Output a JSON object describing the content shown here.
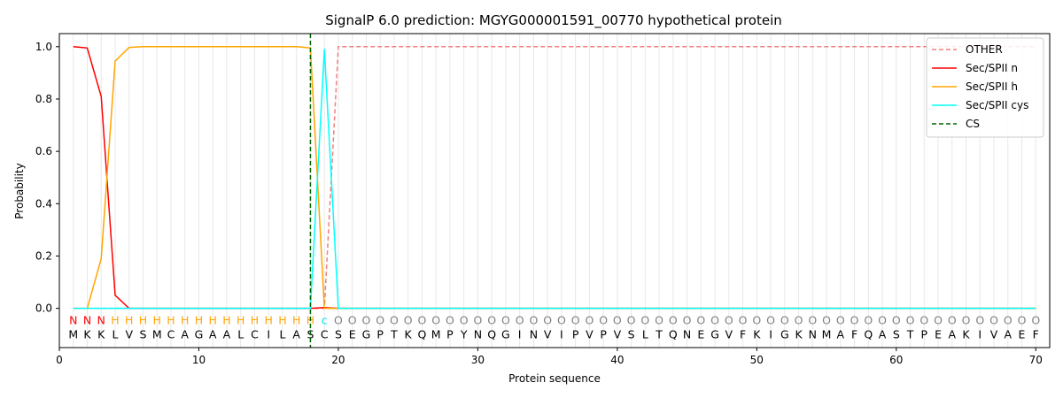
{
  "chart_data": {
    "type": "line",
    "title": "SignalP 6.0 prediction: MGYG000001591_00770 hypothetical protein",
    "xlabel": "Protein sequence",
    "ylabel": "Probability",
    "xlim": [
      0,
      71
    ],
    "ylim": [
      -0.15,
      1.05
    ],
    "xticks": [
      0,
      10,
      20,
      30,
      40,
      50,
      60,
      70
    ],
    "yticks": [
      0.0,
      0.2,
      0.4,
      0.6,
      0.8,
      1.0
    ],
    "xtick_labels": [
      "0",
      "10",
      "20",
      "30",
      "40",
      "50",
      "60",
      "70"
    ],
    "ytick_labels": [
      "0.0",
      "0.2",
      "0.4",
      "0.6",
      "0.8",
      "1.0"
    ],
    "grid": "vertical lines at each residue",
    "legend_position": "top-right",
    "sequence": [
      "M",
      "K",
      "K",
      "L",
      "V",
      "S",
      "M",
      "C",
      "A",
      "G",
      "A",
      "A",
      "L",
      "C",
      "I",
      "L",
      "A",
      "S",
      "C",
      "S",
      "E",
      "G",
      "P",
      "T",
      "K",
      "Q",
      "M",
      "P",
      "Y",
      "N",
      "Q",
      "G",
      "I",
      "N",
      "V",
      "I",
      "P",
      "V",
      "P",
      "V",
      "S",
      "L",
      "T",
      "Q",
      "N",
      "E",
      "G",
      "V",
      "F",
      "K",
      "I",
      "G",
      "K",
      "N",
      "M",
      "A",
      "F",
      "Q",
      "A",
      "S",
      "T",
      "P",
      "E",
      "A",
      "K",
      "I",
      "V",
      "A",
      "E",
      "F"
    ],
    "labels": [
      "N",
      "N",
      "N",
      "H",
      "H",
      "H",
      "H",
      "H",
      "H",
      "H",
      "H",
      "H",
      "H",
      "H",
      "H",
      "H",
      "H",
      "H",
      "c",
      "O",
      "O",
      "O",
      "O",
      "O",
      "O",
      "O",
      "O",
      "O",
      "O",
      "O",
      "O",
      "O",
      "O",
      "O",
      "O",
      "O",
      "O",
      "O",
      "O",
      "O",
      "O",
      "O",
      "O",
      "O",
      "O",
      "O",
      "O",
      "O",
      "O",
      "O",
      "O",
      "O",
      "O",
      "O",
      "O",
      "O",
      "O",
      "O",
      "O",
      "O",
      "O",
      "O",
      "O",
      "O",
      "O",
      "O",
      "O",
      "O",
      "O",
      "O"
    ],
    "label_colors": {
      "N": "#ff0000",
      "H": "#ffa500",
      "c": "#00e5ee",
      "O": "#808080"
    },
    "series": [
      {
        "name": "OTHER",
        "color": "#f08080",
        "style": "dashed",
        "values": [
          0,
          0,
          0,
          0,
          0,
          0,
          0,
          0,
          0,
          0,
          0,
          0,
          0,
          0,
          0,
          0,
          0,
          0,
          0,
          1,
          1,
          1,
          1,
          1,
          1,
          1,
          1,
          1,
          1,
          1,
          1,
          1,
          1,
          1,
          1,
          1,
          1,
          1,
          1,
          1,
          1,
          1,
          1,
          1,
          1,
          1,
          1,
          1,
          1,
          1,
          1,
          1,
          1,
          1,
          1,
          1,
          1,
          1,
          1,
          1,
          1,
          1,
          1,
          1,
          1,
          1,
          1,
          1,
          1,
          1
        ]
      },
      {
        "name": "Sec/SPII n",
        "color": "#ff0000",
        "style": "solid",
        "values": [
          1.0,
          0.995,
          0.81,
          0.05,
          0.0,
          0,
          0,
          0,
          0,
          0,
          0,
          0,
          0,
          0,
          0,
          0,
          0,
          0.0,
          0.003,
          0,
          0,
          0,
          0,
          0,
          0,
          0,
          0,
          0,
          0,
          0,
          0,
          0,
          0,
          0,
          0,
          0,
          0,
          0,
          0,
          0,
          0,
          0,
          0,
          0,
          0,
          0,
          0,
          0,
          0,
          0,
          0,
          0,
          0,
          0,
          0,
          0,
          0,
          0,
          0,
          0,
          0,
          0,
          0,
          0,
          0,
          0,
          0,
          0,
          0,
          0
        ]
      },
      {
        "name": "Sec/SPII h",
        "color": "#ffa500",
        "style": "solid",
        "values": [
          0.0,
          0.0,
          0.19,
          0.945,
          0.997,
          1.0,
          1.0,
          1.0,
          1.0,
          1.0,
          1.0,
          1.0,
          1.0,
          1.0,
          1.0,
          1.0,
          1.0,
          0.995,
          0.0,
          0,
          0,
          0,
          0,
          0,
          0,
          0,
          0,
          0,
          0,
          0,
          0,
          0,
          0,
          0,
          0,
          0,
          0,
          0,
          0,
          0,
          0,
          0,
          0,
          0,
          0,
          0,
          0,
          0,
          0,
          0,
          0,
          0,
          0,
          0,
          0,
          0,
          0,
          0,
          0,
          0,
          0,
          0,
          0,
          0,
          0,
          0,
          0,
          0,
          0,
          0
        ]
      },
      {
        "name": "Sec/SPII cys",
        "color": "#00ffff",
        "style": "solid",
        "values": [
          0,
          0,
          0,
          0,
          0,
          0,
          0,
          0,
          0,
          0,
          0,
          0,
          0,
          0,
          0,
          0,
          0,
          0.0,
          0.99,
          0.0,
          0,
          0,
          0,
          0,
          0,
          0,
          0,
          0,
          0,
          0,
          0,
          0,
          0,
          0,
          0,
          0,
          0,
          0,
          0,
          0,
          0,
          0,
          0,
          0,
          0,
          0,
          0,
          0,
          0,
          0,
          0,
          0,
          0,
          0,
          0,
          0,
          0,
          0,
          0,
          0,
          0,
          0,
          0,
          0,
          0,
          0,
          0,
          0,
          0,
          0
        ]
      },
      {
        "name": "CS",
        "color": "#006400",
        "style": "dashed-vertical",
        "x": 18
      }
    ]
  }
}
